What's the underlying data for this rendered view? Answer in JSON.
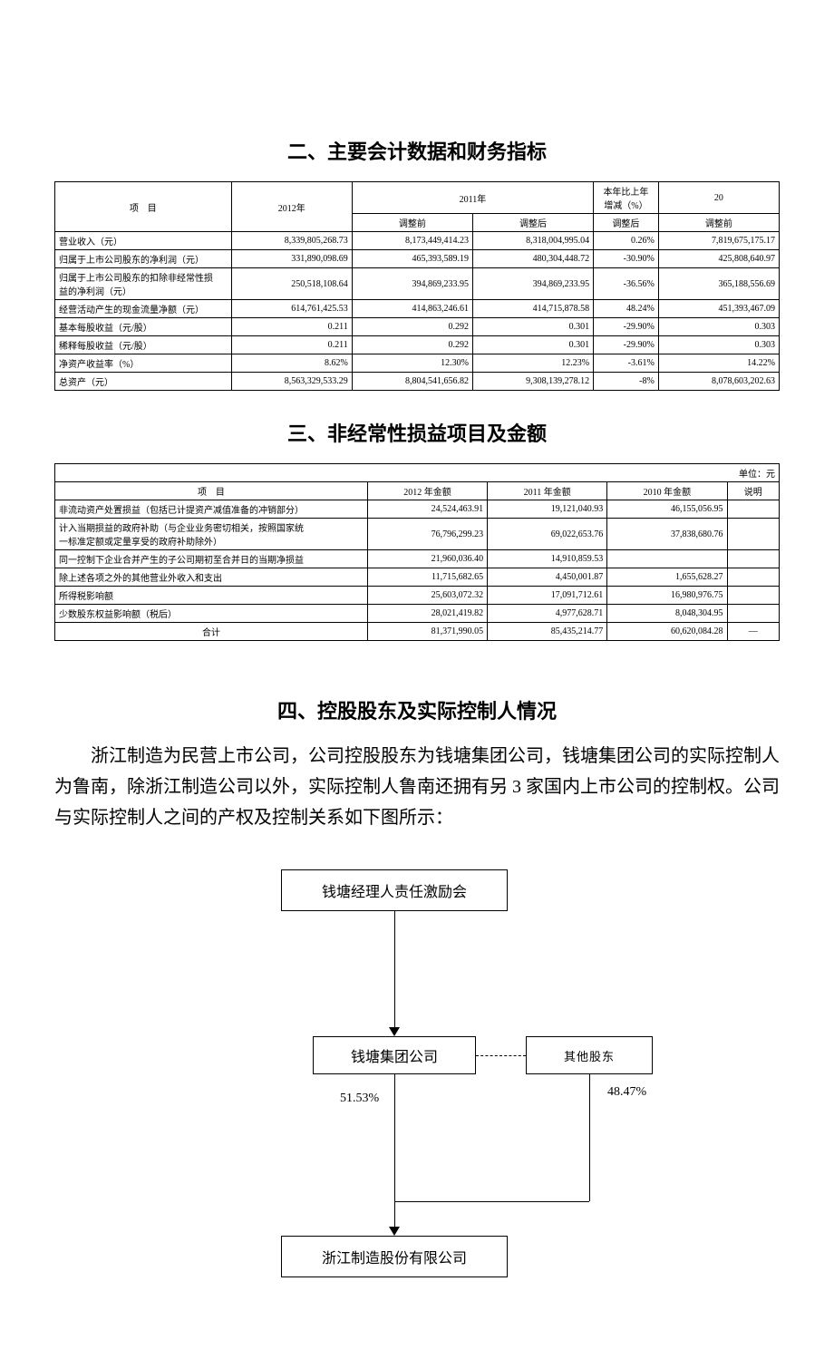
{
  "section2": {
    "title": "二、主要会计数据和财务指标",
    "header": {
      "item": "项　目",
      "y2012": "2012年",
      "y2011": "2011年",
      "delta": "本年比上年\n增减（%）",
      "y20": "20",
      "pre": "调整前",
      "post": "调整后",
      "post2": "调整后",
      "pre2": "调整前"
    },
    "rows": [
      {
        "label": "营业收入（元）",
        "c1": "8,339,805,268.73",
        "c2": "8,173,449,414.23",
        "c3": "8,318,004,995.04",
        "c4": "0.26%",
        "c5": "7,819,675,175.17"
      },
      {
        "label": "归属于上市公司股东的净利润（元）",
        "c1": "331,890,098.69",
        "c2": "465,393,589.19",
        "c3": "480,304,448.72",
        "c4": "-30.90%",
        "c5": "425,808,640.97"
      },
      {
        "label": "归属于上市公司股东的扣除非经常性损\n益的净利润（元）",
        "c1": "250,518,108.64",
        "c2": "394,869,233.95",
        "c3": "394,869,233.95",
        "c4": "-36.56%",
        "c5": "365,188,556.69"
      },
      {
        "label": "经营活动产生的现金流量净额（元）",
        "c1": "614,761,425.53",
        "c2": "414,863,246.61",
        "c3": "414,715,878.58",
        "c4": "48.24%",
        "c5": "451,393,467.09"
      },
      {
        "label": "基本每股收益（元/股）",
        "c1": "0.211",
        "c2": "0.292",
        "c3": "0.301",
        "c4": "-29.90%",
        "c5": "0.303"
      },
      {
        "label": "稀释每股收益（元/股）",
        "c1": "0.211",
        "c2": "0.292",
        "c3": "0.301",
        "c4": "-29.90%",
        "c5": "0.303"
      },
      {
        "label": "净资产收益率（%）",
        "c1": "8.62%",
        "c2": "12.30%",
        "c3": "12.23%",
        "c4": "-3.61%",
        "c5": "14.22%"
      },
      {
        "label": "总资产（元）",
        "c1": "8,563,329,533.29",
        "c2": "8,804,541,656.82",
        "c3": "9,308,139,278.12",
        "c4": "-8%",
        "c5": "8,078,603,202.63"
      }
    ]
  },
  "section3": {
    "title": "三、非经常性损益项目及金额",
    "unit": "单位：元",
    "header": {
      "item": "项　目",
      "y2012": "2012 年金额",
      "y2011": "2011 年金额",
      "y2010": "2010 年金额",
      "note": "说明"
    },
    "rows": [
      {
        "label": "非流动资产处置损益（包括已计提资产减值准备的冲销部分）",
        "c1": "24,524,463.91",
        "c2": "19,121,040.93",
        "c3": "46,155,056.95",
        "c4": ""
      },
      {
        "label": "计入当期损益的政府补助（与企业业务密切相关，按照国家统\n一标准定额或定量享受的政府补助除外）",
        "c1": "76,796,299.23",
        "c2": "69,022,653.76",
        "c3": "37,838,680.76",
        "c4": ""
      },
      {
        "label": "同一控制下企业合并产生的子公司期初至合并日的当期净损益",
        "c1": "21,960,036.40",
        "c2": "14,910,859.53",
        "c3": "",
        "c4": ""
      },
      {
        "label": "除上述各项之外的其他营业外收入和支出",
        "c1": "11,715,682.65",
        "c2": "4,450,001.87",
        "c3": "1,655,628.27",
        "c4": ""
      },
      {
        "label": "所得税影响额",
        "c1": "25,603,072.32",
        "c2": "17,091,712.61",
        "c3": "16,980,976.75",
        "c4": ""
      },
      {
        "label": "少数股东权益影响额（税后）",
        "c1": "28,021,419.82",
        "c2": "4,977,628.71",
        "c3": "8,048,304.95",
        "c4": ""
      },
      {
        "label": "合计",
        "c1": "81,371,990.05",
        "c2": "85,435,214.77",
        "c3": "60,620,084.28",
        "c4": "—"
      }
    ]
  },
  "section4": {
    "title": "四、控股股东及实际控制人情况",
    "paragraph": "浙江制造为民营上市公司，公司控股股东为钱塘集团公司，钱塘集团公司的实际控制人为鲁南，除浙江制造公司以外，实际控制人鲁南还拥有另 3 家国内上市公司的控制权。公司与实际控制人之间的产权及控制关系如下图所示：",
    "diagram": {
      "top": "钱塘经理人责任激励会",
      "left": "钱塘集团公司",
      "right": "其他股东",
      "bottom": "浙江制造股份有限公司",
      "pct_left": "51.53%",
      "pct_right": "48.47%"
    }
  },
  "colors": {
    "text": "#000000",
    "bg": "#ffffff",
    "border": "#000000"
  }
}
